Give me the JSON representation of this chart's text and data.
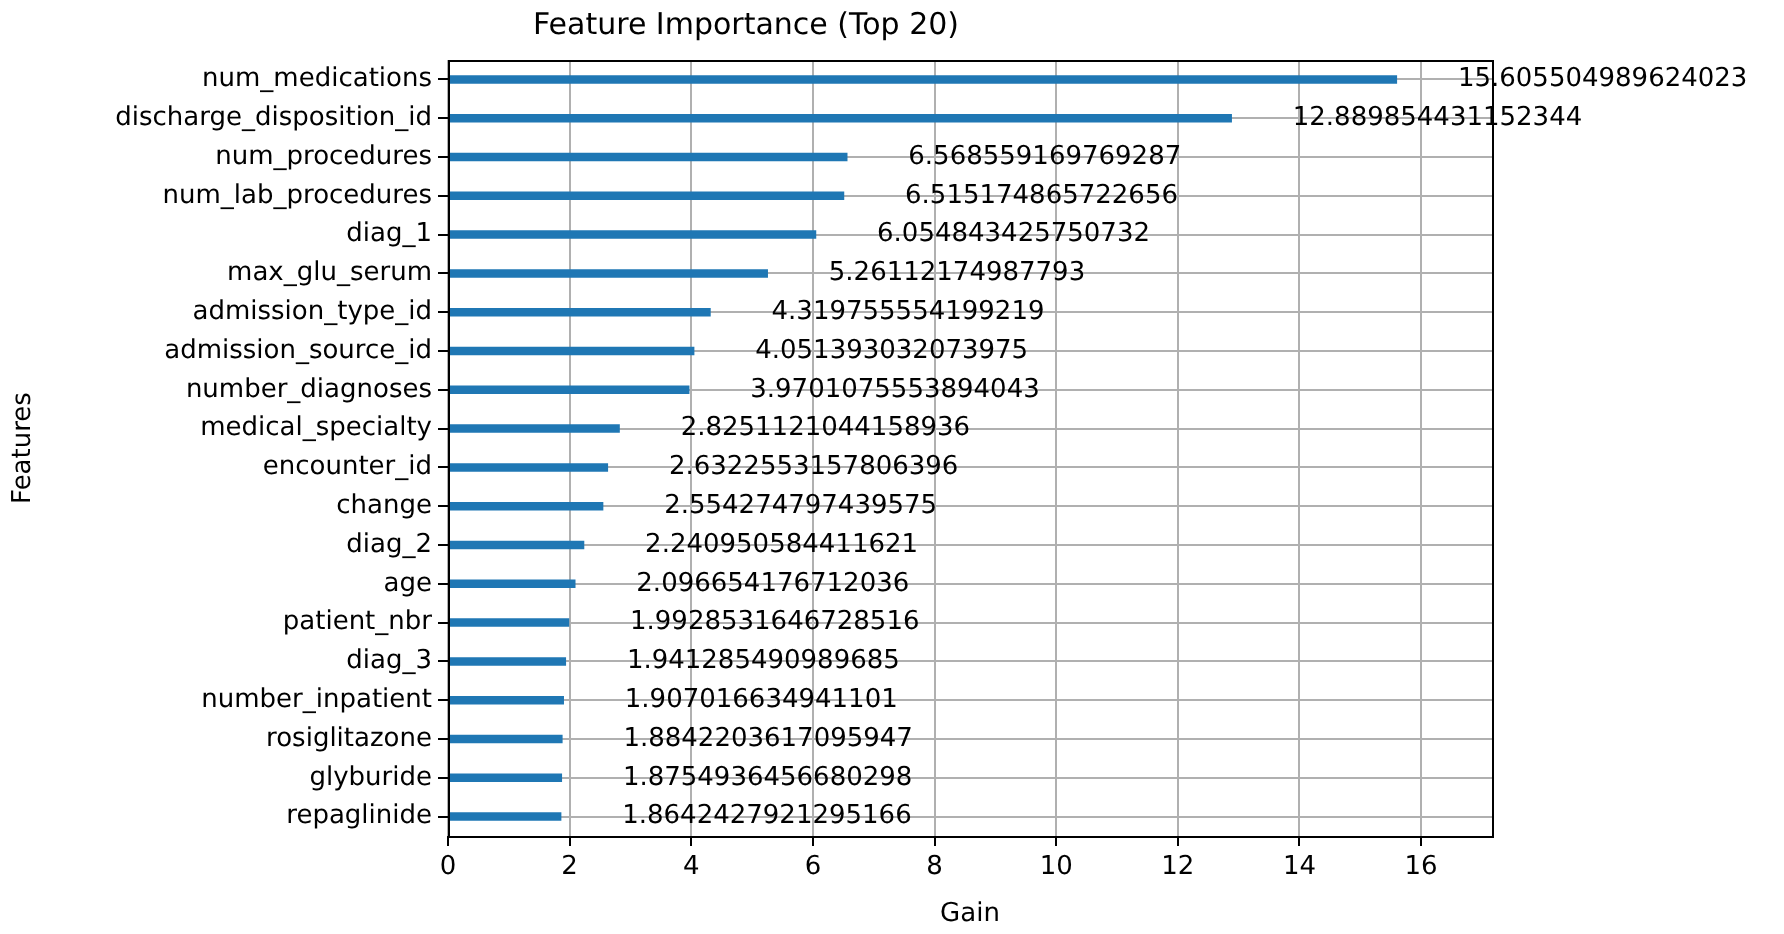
{
  "chart_data": {
    "type": "bar",
    "orientation": "horizontal",
    "title": "Feature Importance (Top 20)",
    "xlabel": "Gain",
    "ylabel": "Features",
    "categories": [
      "num_medications",
      "discharge_disposition_id",
      "num_procedures",
      "num_lab_procedures",
      "diag_1",
      "max_glu_serum",
      "admission_type_id",
      "admission_source_id",
      "number_diagnoses",
      "medical_specialty",
      "encounter_id",
      "change",
      "diag_2",
      "age",
      "patient_nbr",
      "diag_3",
      "number_inpatient",
      "rosiglitazone",
      "glyburide",
      "repaglinide"
    ],
    "values": [
      15.605504989624023,
      12.889854431152344,
      6.568559169769287,
      6.515174865722656,
      6.054843425750732,
      5.26112174987793,
      4.319755554199219,
      4.051393032073975,
      3.9701075553894043,
      2.8251121044158936,
      2.6322553157806396,
      2.554274797439575,
      2.240950584411621,
      2.096654176712036,
      1.9928531646728516,
      1.941285490989685,
      1.907016634941101,
      1.8842203617095947,
      1.8754936456680298,
      1.8642427921295166
    ],
    "color": "#1f77b4",
    "xlim": [
      0,
      17.166
    ],
    "xticks": [
      0,
      2,
      4,
      6,
      8,
      10,
      12,
      14,
      16
    ],
    "grid": true,
    "data_labels": true
  }
}
